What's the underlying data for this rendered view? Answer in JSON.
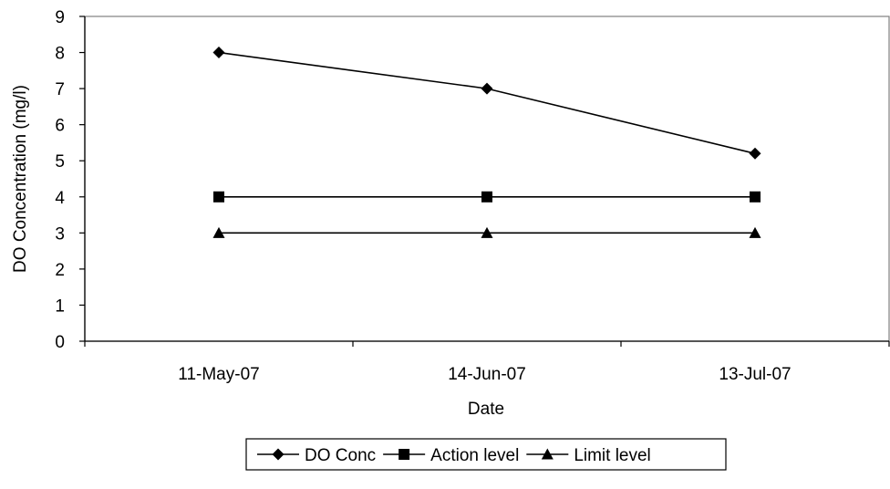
{
  "chart_data": {
    "type": "line",
    "title": "",
    "xlabel": "Date",
    "ylabel": "DO Concentration (mg/l)",
    "categories": [
      "11-May-07",
      "14-Jun-07",
      "13-Jul-07"
    ],
    "ylim": [
      0,
      9
    ],
    "yticks": [
      "0",
      "1",
      "2",
      "3",
      "4",
      "5",
      "6",
      "7",
      "8",
      "9"
    ],
    "grid": false,
    "legend_position": "bottom",
    "series": [
      {
        "name": "DO Conc",
        "marker": "diamond",
        "color": "#000000",
        "values": [
          8,
          7,
          5.2
        ]
      },
      {
        "name": "Action level",
        "marker": "square",
        "color": "#000000",
        "values": [
          4,
          4,
          4
        ]
      },
      {
        "name": "Limit level",
        "marker": "triangle",
        "color": "#000000",
        "values": [
          3,
          3,
          3
        ]
      }
    ]
  }
}
